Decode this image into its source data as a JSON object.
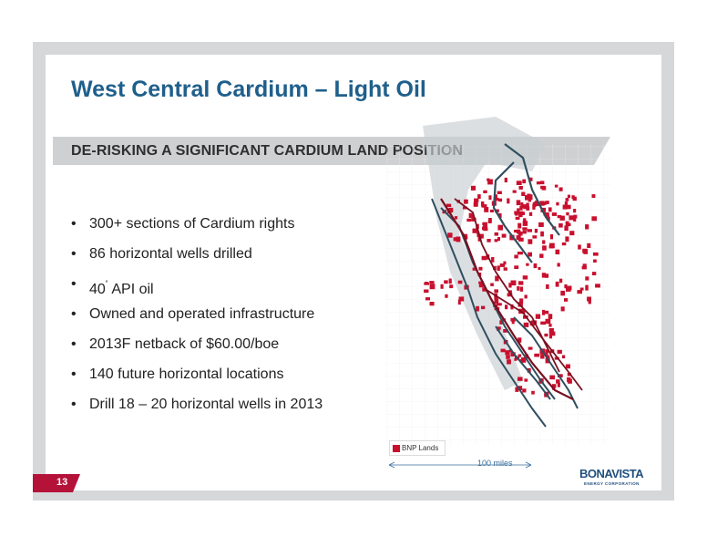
{
  "slide": {
    "title": "West Central Cardium – Light Oil",
    "subtitle": "DE-RISKING A SIGNIFICANT CARDIUM LAND POSITION",
    "bullets": [
      "300+ sections of Cardium rights",
      "86 horizontal wells drilled",
      "API oil",
      "Owned and operated infrastructure",
      "2013F netback of $60.00/boe",
      "140 future horizontal locations",
      "Drill 18 – 20 horizontal wells in 2013"
    ],
    "api_value": "40",
    "api_degree": "˚",
    "page_number": "13"
  },
  "map": {
    "legend_label": "BNP Lands",
    "scale_label": "100 miles",
    "colors": {
      "lands": "#c8102e",
      "trend_outline": "#2f4f5f",
      "trend_dark": "#7a1020",
      "grid": "#e6e6e6"
    }
  },
  "logo": {
    "name": "BONAVISTA",
    "tagline": "ENERGY CORPORATION"
  }
}
